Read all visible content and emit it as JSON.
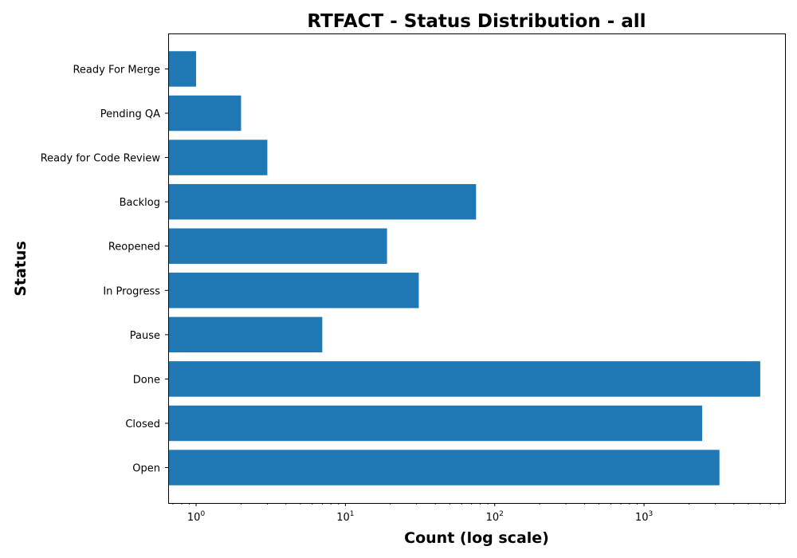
{
  "chart_data": {
    "type": "bar",
    "orientation": "horizontal",
    "title": "RTFACT - Status Distribution - all",
    "xlabel": "Count (log scale)",
    "ylabel": "Status",
    "xscale": "log",
    "xlim": [
      0.65,
      8800
    ],
    "x_ticks": [
      {
        "base": "10",
        "exp": "0",
        "value": 1
      },
      {
        "base": "10",
        "exp": "1",
        "value": 10
      },
      {
        "base": "10",
        "exp": "2",
        "value": 100
      },
      {
        "base": "10",
        "exp": "3",
        "value": 1000
      }
    ],
    "categories": [
      "Open",
      "Closed",
      "Done",
      "Pause",
      "In Progress",
      "Reopened",
      "Backlog",
      "Ready for Code Review",
      "Pending QA",
      "Ready For Merge"
    ],
    "values": [
      3200,
      2450,
      6000,
      7,
      31,
      19,
      75,
      3,
      2,
      1
    ],
    "color": "#1f77b4",
    "grid": false,
    "legend": "none"
  }
}
